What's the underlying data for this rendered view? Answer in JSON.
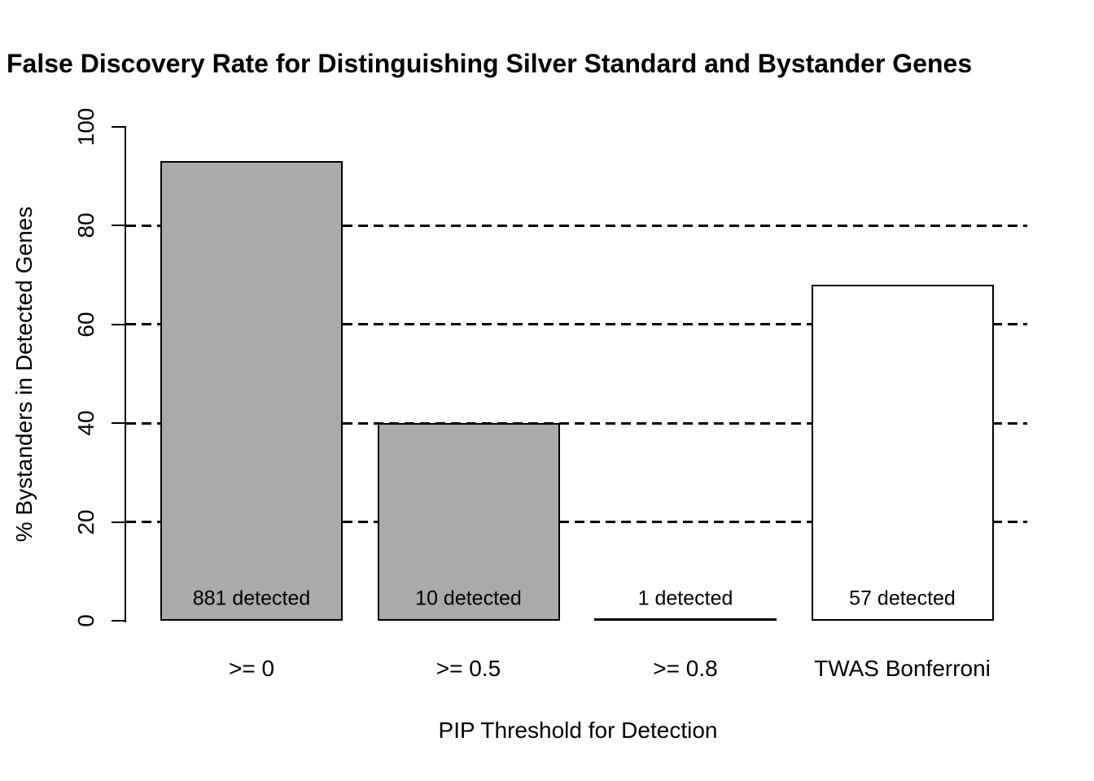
{
  "chart_data": {
    "type": "bar",
    "title": "False Discovery Rate for Distinguishing Silver Standard and Bystander Genes",
    "xlabel": "PIP Threshold for Detection",
    "ylabel": "% Bystanders in Detected Genes",
    "categories": [
      ">= 0",
      ">= 0.5",
      ">= 0.8",
      "TWAS Bonferroni"
    ],
    "values": [
      93,
      40,
      0,
      68
    ],
    "bar_labels": [
      "881 detected",
      "10 detected",
      "1 detected",
      "57 detected"
    ],
    "detected_counts": [
      881,
      10,
      1,
      57
    ],
    "bar_fill_colors": [
      "#AAAAAA",
      "#AAAAAA",
      "#AAAAAA",
      "#FFFFFF"
    ],
    "bar_border_color": "#000000",
    "ylim": [
      0,
      100
    ],
    "yticks": [
      0,
      20,
      40,
      60,
      80,
      100
    ],
    "gridlines": [
      20,
      40,
      60,
      80
    ],
    "gridline_style": "dashed",
    "grid_color": "#000000",
    "background_color": "#FFFFFF",
    "legend": "none"
  }
}
